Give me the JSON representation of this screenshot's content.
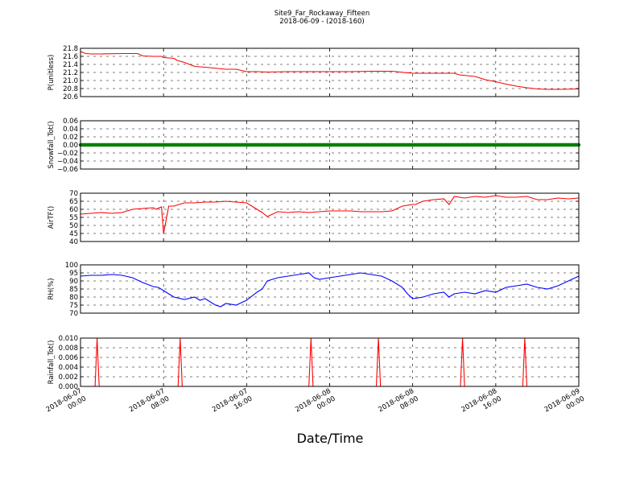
{
  "title": "Site9_Far_Rockaway_Fifteen",
  "subtitle": "2018-06-09 - (2018-160)",
  "xlabel": "Date/Time",
  "colors": {
    "pressure": "#ff0000",
    "snow": "#008000",
    "temp": "#ff0000",
    "rh": "#0000ff",
    "rain": "#ff0000"
  },
  "x_tick_labels": [
    [
      "2018-06-07",
      "00:00"
    ],
    [
      "2018-06-07",
      "08:00"
    ],
    [
      "2018-06-07",
      "16:00"
    ],
    [
      "2018-06-08",
      "00:00"
    ],
    [
      "2018-06-08",
      "08:00"
    ],
    [
      "2018-06-08",
      "16:00"
    ],
    [
      "2018-06-09",
      "00:00"
    ]
  ],
  "chart_data": [
    {
      "type": "line",
      "ylabel": "P(unitless)",
      "ylim": [
        20.6,
        21.8
      ],
      "yticks": [
        "20.6",
        "20.8",
        "21.0",
        "21.2",
        "21.4",
        "21.6",
        "21.8"
      ],
      "grid": true,
      "x_hours": [
        0,
        0.5,
        1,
        2,
        4,
        5.5,
        6,
        7,
        7.8,
        8,
        9,
        9.3,
        10,
        10.5,
        11,
        12,
        14,
        15,
        16,
        17,
        18,
        20,
        22,
        24,
        26,
        28,
        30,
        32,
        34,
        36,
        36.5,
        38,
        39,
        40,
        41,
        42,
        43,
        44,
        45,
        46,
        48
      ],
      "values": [
        21.72,
        21.67,
        21.66,
        21.66,
        21.67,
        21.67,
        21.61,
        21.6,
        21.6,
        21.57,
        21.55,
        21.5,
        21.45,
        21.4,
        21.35,
        21.33,
        21.28,
        21.28,
        21.22,
        21.22,
        21.21,
        21.22,
        21.22,
        21.22,
        21.22,
        21.23,
        21.23,
        21.18,
        21.18,
        21.18,
        21.14,
        21.1,
        21.02,
        20.97,
        20.91,
        20.86,
        20.82,
        20.79,
        20.78,
        20.78,
        20.79
      ]
    },
    {
      "type": "scatter",
      "ylabel": "Snowfall_Tot()",
      "ylim": [
        -0.06,
        0.06
      ],
      "yticks": [
        "−0.06",
        "−0.04",
        "−0.02",
        "0.00",
        "0.02",
        "0.04",
        "0.06"
      ],
      "grid": true,
      "x_range_hours": [
        0,
        48
      ],
      "points": 481,
      "value": 0.0
    },
    {
      "type": "line",
      "ylabel": "AirTF()",
      "ylim": [
        40,
        70
      ],
      "yticks": [
        "40",
        "45",
        "50",
        "55",
        "60",
        "65",
        "70"
      ],
      "grid": true,
      "x_hours": [
        0,
        1,
        2,
        3,
        4,
        5,
        6,
        7,
        7.3,
        7.6,
        7.8,
        8,
        8.5,
        9,
        9.5,
        10,
        11,
        12,
        13,
        14,
        15,
        16,
        16.5,
        17,
        17.5,
        18,
        19,
        20,
        21,
        22,
        23,
        24,
        25,
        26,
        27,
        28,
        29,
        30,
        31,
        31.5,
        32,
        32.3,
        32.6,
        33,
        34,
        35,
        35.5,
        36,
        37,
        38,
        39,
        40,
        41,
        42,
        43,
        44,
        45,
        46,
        47,
        48
      ],
      "values": [
        57,
        57.5,
        58,
        57.5,
        58,
        60,
        60.5,
        61,
        60,
        61,
        61.5,
        45,
        62,
        62,
        63,
        64,
        64,
        64.5,
        64.5,
        65,
        64.5,
        64,
        62,
        60,
        58,
        55.5,
        58.5,
        58,
        58.5,
        58,
        58.5,
        59,
        59,
        59,
        58.5,
        58.5,
        58.5,
        59,
        62,
        62.5,
        63,
        63,
        64,
        65,
        66,
        66.5,
        63,
        68,
        67,
        68,
        67.5,
        68.5,
        67.5,
        67.5,
        68,
        66,
        66,
        67,
        66.5,
        67
      ]
    },
    {
      "type": "line",
      "ylabel": "RH(%)",
      "ylim": [
        70,
        100
      ],
      "yticks": [
        "70",
        "75",
        "80",
        "85",
        "90",
        "95",
        "100"
      ],
      "grid": true,
      "x_hours": [
        0,
        1,
        2,
        3,
        4,
        5,
        6,
        7,
        7.5,
        8,
        8.5,
        9,
        10,
        11,
        11.5,
        12,
        13,
        13.5,
        14,
        15,
        16,
        17,
        17.5,
        18,
        19,
        20,
        21,
        22,
        22.5,
        23,
        24,
        25,
        26,
        27,
        28,
        29,
        30,
        31,
        31.5,
        32,
        33,
        34,
        35,
        35.5,
        36,
        37,
        38,
        39,
        40,
        41,
        42,
        43,
        44,
        45,
        46,
        47,
        48
      ],
      "values": [
        93,
        93.5,
        93.5,
        94,
        93.5,
        92,
        89,
        86.5,
        86,
        84,
        82,
        80,
        78.5,
        80,
        78,
        79,
        75,
        74,
        76,
        75,
        78,
        83,
        85,
        90,
        92,
        93,
        94,
        95,
        92,
        91,
        92,
        93,
        94,
        95,
        94,
        93,
        90,
        86,
        82,
        79,
        80,
        82,
        83,
        80,
        82,
        83,
        82,
        84,
        83,
        86,
        87,
        88,
        86,
        85,
        87,
        90,
        93
      ]
    },
    {
      "type": "line",
      "ylabel": "Rainfall_Tot()",
      "ylim": [
        0,
        0.01
      ],
      "yticks": [
        "0.000",
        "0.002",
        "0.004",
        "0.006",
        "0.008",
        "0.010"
      ],
      "grid": true,
      "x_hours": [
        0,
        1.4,
        1.6,
        1.8,
        9.4,
        9.6,
        9.8,
        22.0,
        22.2,
        22.4,
        28.5,
        28.7,
        28.9,
        36.6,
        36.8,
        37.0,
        42.6,
        42.8,
        43.0,
        48
      ],
      "values": [
        0,
        0,
        0.01,
        0,
        0,
        0.01,
        0,
        0,
        0.01,
        0,
        0,
        0.01,
        0,
        0,
        0.01,
        0,
        0,
        0.01,
        0,
        0
      ]
    }
  ]
}
